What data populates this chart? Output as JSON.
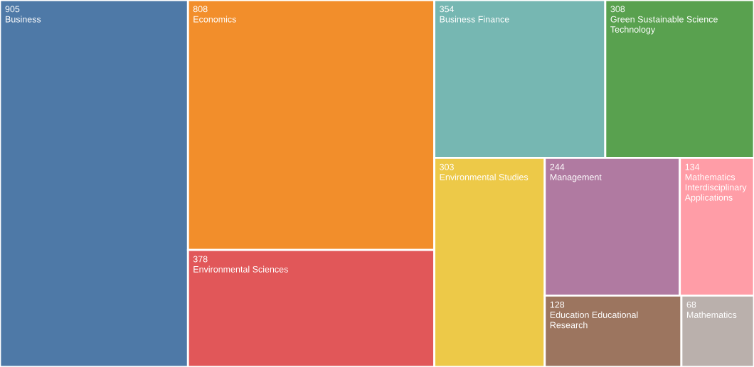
{
  "chart_data": {
    "type": "other",
    "categories": [
      "Business",
      "Economics",
      "Environmental Sciences",
      "Business Finance",
      "Green Sustainable Science Technology",
      "Environmental Studies",
      "Management",
      "Mathematics Interdisciplinary Applications",
      "Education Educational Research",
      "Mathematics"
    ],
    "values": [
      905,
      808,
      378,
      354,
      308,
      303,
      244,
      134,
      128,
      68
    ],
    "colors": [
      "#4e79a7",
      "#f28e2b",
      "#e15759",
      "#76b7b2",
      "#59a14f",
      "#edc948",
      "#b07aa1",
      "#ff9da7",
      "#9c755f",
      "#bab0ac"
    ],
    "data_labels": true
  }
}
